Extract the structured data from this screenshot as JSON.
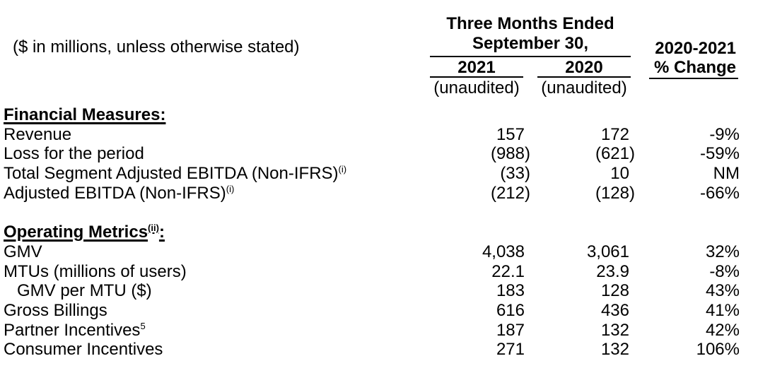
{
  "colors": {
    "text": "#000000",
    "background": "#ffffff",
    "rule": "#000000"
  },
  "header": {
    "left_label": "($ in millions, unless otherwise stated)",
    "period_group": {
      "line1": "Three Months Ended",
      "line2": "September 30,"
    },
    "col_2021": "2021",
    "col_2020": "2020",
    "col_2021_subnote": "(unaudited)",
    "col_2020_subnote": "(unaudited)",
    "change_col": {
      "line1": "2020-2021",
      "line2": "% Change"
    }
  },
  "table": {
    "columns": [
      "2021",
      "2020",
      "% Change"
    ],
    "rows": [
      {
        "type": "section",
        "label": "Financial Measures",
        "sup": "",
        "suffix": ":",
        "values": null
      },
      {
        "type": "item",
        "label": "Revenue",
        "sup": "",
        "suffix": "",
        "values": [
          "157",
          "172",
          "-9%"
        ]
      },
      {
        "type": "item",
        "label": "Loss for the period",
        "sup": "",
        "suffix": "",
        "values": [
          "(988)",
          "(621)",
          "-59%"
        ]
      },
      {
        "type": "item",
        "label": "Total Segment Adjusted EBITDA (Non-IFRS)",
        "sup": "(i)",
        "suffix": "",
        "values": [
          "(33)",
          "10",
          "NM"
        ]
      },
      {
        "type": "item",
        "label": "Adjusted EBITDA (Non-IFRS)",
        "sup": "(i)",
        "suffix": "",
        "values": [
          "(212)",
          "(128)",
          "-66%"
        ]
      },
      {
        "type": "spacer",
        "label": "",
        "sup": "",
        "suffix": "",
        "values": null
      },
      {
        "type": "section",
        "label": "Operating Metrics",
        "sup": "(ii)",
        "suffix": ":",
        "values": null
      },
      {
        "type": "item",
        "label": "GMV",
        "sup": "",
        "suffix": "",
        "values": [
          "4,038",
          "3,061",
          "32%"
        ]
      },
      {
        "type": "item",
        "label": "MTUs (millions of users)",
        "sup": "",
        "suffix": "",
        "values": [
          "22.1",
          "23.9",
          "-8%"
        ]
      },
      {
        "type": "item-indent",
        "label": "GMV per MTU ($)",
        "sup": "",
        "suffix": "",
        "values": [
          "183",
          "128",
          "43%"
        ]
      },
      {
        "type": "item",
        "label": "Gross Billings",
        "sup": "",
        "suffix": "",
        "values": [
          "616",
          "436",
          "41%"
        ]
      },
      {
        "type": "item",
        "label": "Partner Incentives",
        "sup": "5",
        "suffix": "",
        "values": [
          "187",
          "132",
          "42%"
        ]
      },
      {
        "type": "item",
        "label": "Consumer Incentives",
        "sup": "",
        "suffix": "",
        "values": [
          "271",
          "132",
          "106%"
        ]
      }
    ]
  }
}
